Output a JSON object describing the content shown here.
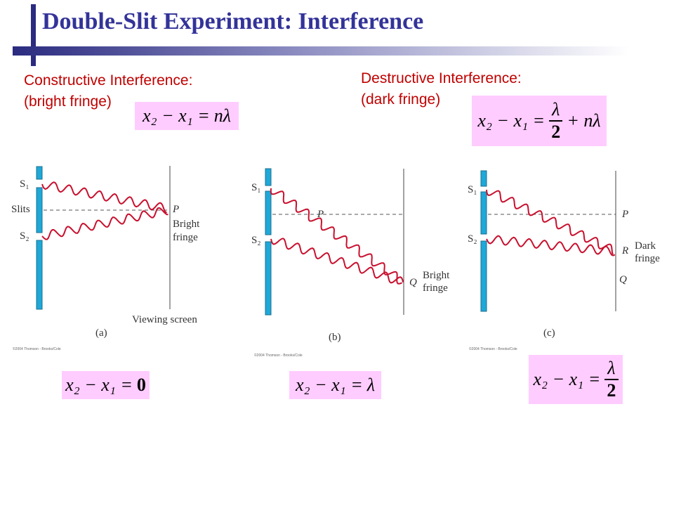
{
  "header": {
    "title": "Double-Slit Experiment: Interference"
  },
  "constructive": {
    "label": "Constructive Interference:",
    "sublabel": "(bright fringe)",
    "equation": {
      "lhs": "x₂ − x₁ =",
      "rhs": "nλ"
    }
  },
  "destructive": {
    "label": "Destructive Interference:",
    "sublabel": "(dark fringe)",
    "equation": {
      "lhs": "x₂ − x₁ =",
      "numerator": "λ",
      "denominator": "2",
      "tail": "+ nλ"
    }
  },
  "panels": [
    {
      "s1": "S₁",
      "slits": "Slits",
      "s2": "S₂",
      "p": "P",
      "fringe": [
        "Bright",
        "fringe"
      ],
      "screen": "Viewing screen",
      "caption": "(a)",
      "credit": "©2004 Thomson - Brooks/Cole",
      "equation": {
        "lhs": "x₂ − x₁ =",
        "rhs": "0"
      }
    },
    {
      "s1": "S₁",
      "s2": "S₂",
      "p": "P",
      "q": "Q",
      "fringe": [
        "Bright",
        "fringe"
      ],
      "caption": "(b)",
      "credit": "©2004 Thomson - Brooks/Cole",
      "equation": {
        "lhs": "x₂ − x₁ =",
        "rhs": "λ"
      }
    },
    {
      "s1": "S₁",
      "s2": "S₂",
      "p": "P",
      "r": "R",
      "q": "Q",
      "fringe": [
        "Dark",
        "fringe"
      ],
      "caption": "(c)",
      "credit": "©2004 Thomson - Brooks/Cole",
      "equation": {
        "lhs": "x₂ − x₁ =",
        "numerator": "λ",
        "denominator": "2"
      }
    }
  ]
}
